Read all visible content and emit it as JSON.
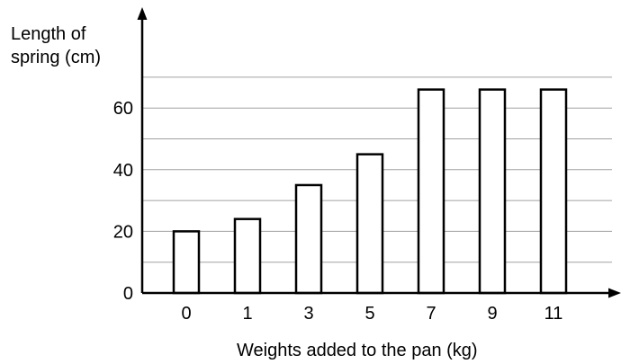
{
  "chart_data": {
    "type": "bar",
    "title": "",
    "categories": [
      "0",
      "1",
      "3",
      "5",
      "7",
      "9",
      "11"
    ],
    "values": [
      20,
      24,
      35,
      45,
      66,
      66,
      66
    ],
    "ylabel_lines": [
      "Length of",
      "spring (cm)"
    ],
    "xlabel": "Weights added to the pan (kg)",
    "yticks": [
      0,
      20,
      40,
      60
    ],
    "gridlines": [
      10,
      20,
      30,
      40,
      50,
      60,
      70
    ],
    "ylim": [
      0,
      70
    ],
    "grid": true,
    "bar_fill": "#ffffff",
    "bar_stroke": "#000000",
    "grid_color": "#a0a0a0"
  }
}
